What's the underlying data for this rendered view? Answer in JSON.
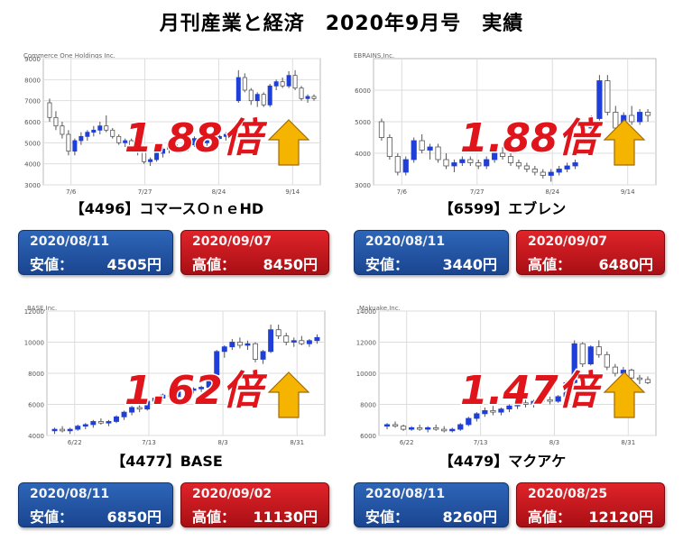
{
  "page": {
    "title": "月刊産業と経済　2020年9月号　実績"
  },
  "charts": [
    {
      "company": "【4496】コマースＯｎｅHD",
      "low": {
        "date": "2020/08/11",
        "label": "安値：",
        "value": "4505円"
      },
      "high": {
        "date": "2020/09/07",
        "label": "高値：",
        "value": "8450円"
      },
      "multiplier": "1.88倍"
    },
    {
      "company": "【6599】エブレン",
      "low": {
        "date": "2020/08/11",
        "label": "安値：",
        "value": "3440円"
      },
      "high": {
        "date": "2020/09/07",
        "label": "高値：",
        "value": "6480円"
      },
      "multiplier": "1.88倍"
    },
    {
      "company": "【4477】BASE",
      "low": {
        "date": "2020/08/11",
        "label": "安値：",
        "value": "6850円"
      },
      "high": {
        "date": "2020/09/02",
        "label": "高値：",
        "value": "11130円"
      },
      "multiplier": "1.62倍"
    },
    {
      "company": "【4479】マクアケ",
      "low": {
        "date": "2020/08/11",
        "label": "安値：",
        "value": "8260円"
      },
      "high": {
        "date": "2020/08/25",
        "label": "高値：",
        "value": "12120円"
      },
      "multiplier": "1.47倍"
    }
  ],
  "colors": {
    "up": "#1f3fd8",
    "down": "#ffffff",
    "outline": "#555555",
    "multiplier": "#e0141b",
    "arrow": "#f5b400"
  },
  "chart_data": [
    {
      "type": "candlestick",
      "title": "Commerce One Holdings Inc.",
      "ylim": [
        3000,
        9000
      ],
      "yticks": [
        3000,
        4000,
        5000,
        6000,
        7000,
        8000,
        9000
      ],
      "xticks": [
        "7/6",
        "7/27",
        "8/24",
        "9/14"
      ],
      "grid": true,
      "values": [
        [
          6900,
          7100,
          6000,
          6200
        ],
        [
          6200,
          6500,
          5600,
          5800
        ],
        [
          5800,
          6000,
          5200,
          5400
        ],
        [
          5400,
          5600,
          4400,
          4600
        ],
        [
          4600,
          5200,
          4400,
          5100
        ],
        [
          5100,
          5500,
          4900,
          5300
        ],
        [
          5300,
          5600,
          5100,
          5500
        ],
        [
          5500,
          5800,
          5300,
          5600
        ],
        [
          5600,
          6000,
          5400,
          5800
        ],
        [
          5800,
          6300,
          5500,
          5600
        ],
        [
          5600,
          5700,
          5200,
          5300
        ],
        [
          5300,
          5400,
          4900,
          5000
        ],
        [
          5000,
          5200,
          4800,
          5100
        ],
        [
          5100,
          5200,
          4600,
          4700
        ],
        [
          4700,
          4900,
          4400,
          4600
        ],
        [
          4600,
          4700,
          4000,
          4100
        ],
        [
          4100,
          4300,
          3900,
          4200
        ],
        [
          4200,
          4600,
          4100,
          4500
        ],
        [
          4500,
          4800,
          4300,
          4700
        ],
        [
          4700,
          5000,
          4500,
          4900
        ],
        [
          4900,
          5100,
          4600,
          4700
        ],
        [
          4700,
          4900,
          4500,
          4800
        ],
        [
          4800,
          5000,
          4600,
          4900
        ],
        [
          4900,
          5300,
          4800,
          5200
        ],
        [
          5200,
          5400,
          4900,
          5000
        ],
        [
          5000,
          5200,
          4800,
          5100
        ],
        [
          5100,
          5300,
          4900,
          5200
        ],
        [
          5200,
          5400,
          5000,
          5300
        ],
        [
          5300,
          5500,
          5100,
          5400
        ],
        [
          5400,
          5600,
          5200,
          5500
        ],
        [
          7000,
          8450,
          6900,
          8100
        ],
        [
          8100,
          8300,
          7400,
          7500
        ],
        [
          7500,
          7600,
          6800,
          7000
        ],
        [
          7000,
          7400,
          6700,
          7300
        ],
        [
          7300,
          7400,
          6700,
          6800
        ],
        [
          6800,
          7800,
          6700,
          7700
        ],
        [
          7700,
          8000,
          7500,
          7900
        ],
        [
          7900,
          8100,
          7600,
          7700
        ],
        [
          7700,
          8400,
          7600,
          8200
        ],
        [
          8200,
          8450,
          7500,
          7600
        ],
        [
          7600,
          7700,
          7000,
          7100
        ],
        [
          7100,
          7300,
          6900,
          7200
        ],
        [
          7200,
          7300,
          7000,
          7100
        ]
      ]
    },
    {
      "type": "candlestick",
      "title": "EBRAINS,Inc.",
      "ylim": [
        3000,
        7000
      ],
      "yticks": [
        3000,
        4000,
        5000,
        6000
      ],
      "xticks": [
        "7/6",
        "7/27",
        "8/24",
        "9/14"
      ],
      "grid": true,
      "values": [
        [
          5000,
          5100,
          4400,
          4500
        ],
        [
          4500,
          4600,
          3800,
          3900
        ],
        [
          3900,
          4000,
          3300,
          3400
        ],
        [
          3400,
          3900,
          3300,
          3800
        ],
        [
          3800,
          4500,
          3700,
          4400
        ],
        [
          4400,
          4600,
          4000,
          4100
        ],
        [
          4100,
          4300,
          3800,
          4200
        ],
        [
          4200,
          4300,
          3700,
          3800
        ],
        [
          3800,
          4000,
          3500,
          3600
        ],
        [
          3600,
          3800,
          3400,
          3700
        ],
        [
          3700,
          3900,
          3600,
          3800
        ],
        [
          3800,
          3900,
          3600,
          3700
        ],
        [
          3700,
          3800,
          3500,
          3600
        ],
        [
          3600,
          3900,
          3500,
          3800
        ],
        [
          3800,
          4100,
          3700,
          4000
        ],
        [
          4000,
          4200,
          3800,
          3900
        ],
        [
          3900,
          4000,
          3600,
          3700
        ],
        [
          3700,
          3800,
          3500,
          3600
        ],
        [
          3600,
          3700,
          3400,
          3500
        ],
        [
          3500,
          3600,
          3300,
          3400
        ],
        [
          3400,
          3500,
          3200,
          3300
        ],
        [
          3300,
          3500,
          3100,
          3400
        ],
        [
          3400,
          3600,
          3300,
          3500
        ],
        [
          3500,
          3700,
          3400,
          3600
        ],
        [
          3600,
          3800,
          3500,
          3700
        ],
        [
          4500,
          4900,
          4400,
          4800
        ],
        [
          4800,
          5200,
          4700,
          5100
        ],
        [
          5100,
          6480,
          5000,
          6300
        ],
        [
          6300,
          6480,
          5200,
          5300
        ],
        [
          5300,
          5500,
          4700,
          4800
        ],
        [
          4800,
          5300,
          4600,
          5200
        ],
        [
          5200,
          5500,
          4900,
          5000
        ],
        [
          5000,
          5400,
          4900,
          5300
        ],
        [
          5300,
          5400,
          5000,
          5200
        ]
      ]
    },
    {
      "type": "candlestick",
      "title": "BASE,Inc.",
      "ylim": [
        4000,
        12000
      ],
      "yticks": [
        4000,
        6000,
        8000,
        10000,
        12000
      ],
      "xticks": [
        "6/22",
        "7/13",
        "8/3",
        "8/31"
      ],
      "grid": true,
      "values": [
        [
          4300,
          4500,
          4100,
          4400
        ],
        [
          4400,
          4600,
          4200,
          4300
        ],
        [
          4300,
          4500,
          4100,
          4400
        ],
        [
          4400,
          4700,
          4300,
          4600
        ],
        [
          4600,
          4800,
          4400,
          4700
        ],
        [
          4700,
          5000,
          4500,
          4900
        ],
        [
          4900,
          5100,
          4700,
          4800
        ],
        [
          4800,
          5000,
          4600,
          4900
        ],
        [
          4900,
          5300,
          4800,
          5200
        ],
        [
          5200,
          5600,
          5000,
          5500
        ],
        [
          5500,
          5900,
          5300,
          5800
        ],
        [
          5800,
          6000,
          5500,
          5700
        ],
        [
          5700,
          6300,
          5600,
          6200
        ],
        [
          6200,
          6500,
          6000,
          6400
        ],
        [
          6400,
          6700,
          6200,
          6600
        ],
        [
          6600,
          6800,
          6400,
          6500
        ],
        [
          6500,
          6900,
          6400,
          6800
        ],
        [
          6800,
          7000,
          6600,
          6900
        ],
        [
          6900,
          7100,
          6700,
          7000
        ],
        [
          7000,
          7200,
          6800,
          7100
        ],
        [
          7100,
          8000,
          7000,
          7900
        ],
        [
          7900,
          9500,
          7800,
          9400
        ],
        [
          9400,
          9800,
          9000,
          9700
        ],
        [
          9700,
          10200,
          9500,
          10000
        ],
        [
          10000,
          10300,
          9600,
          9800
        ],
        [
          9800,
          10100,
          9500,
          9900
        ],
        [
          9900,
          10000,
          8700,
          8900
        ],
        [
          8900,
          9500,
          8600,
          9400
        ],
        [
          9400,
          11130,
          9300,
          10800
        ],
        [
          10800,
          11130,
          10200,
          10400
        ],
        [
          10400,
          10600,
          9800,
          10000
        ],
        [
          10000,
          10300,
          9700,
          10100
        ],
        [
          10100,
          10400,
          9800,
          9900
        ],
        [
          9900,
          10200,
          9700,
          10100
        ],
        [
          10100,
          10500,
          9900,
          10300
        ]
      ]
    },
    {
      "type": "candlestick",
      "title": "Makuake,Inc.",
      "ylim": [
        6000,
        14000
      ],
      "yticks": [
        6000,
        8000,
        10000,
        12000,
        14000
      ],
      "xticks": [
        "6/22",
        "7/13",
        "8/3",
        "8/31"
      ],
      "grid": true,
      "values": [
        [
          6600,
          6800,
          6400,
          6700
        ],
        [
          6700,
          6900,
          6500,
          6600
        ],
        [
          6600,
          6700,
          6300,
          6400
        ],
        [
          6400,
          6600,
          6300,
          6500
        ],
        [
          6500,
          6700,
          6300,
          6400
        ],
        [
          6400,
          6600,
          6200,
          6500
        ],
        [
          6500,
          6700,
          6300,
          6400
        ],
        [
          6400,
          6600,
          6200,
          6300
        ],
        [
          6300,
          6500,
          6200,
          6400
        ],
        [
          6400,
          6800,
          6300,
          6700
        ],
        [
          6700,
          7200,
          6600,
          7100
        ],
        [
          7100,
          7500,
          6900,
          7400
        ],
        [
          7400,
          7800,
          7200,
          7600
        ],
        [
          7600,
          7900,
          7300,
          7500
        ],
        [
          7500,
          7800,
          7300,
          7700
        ],
        [
          7700,
          8000,
          7500,
          7900
        ],
        [
          7900,
          8200,
          7700,
          8100
        ],
        [
          8100,
          8300,
          7800,
          8000
        ],
        [
          8000,
          8300,
          7800,
          8200
        ],
        [
          8200,
          8500,
          8000,
          8300
        ],
        [
          8300,
          8500,
          8000,
          8200
        ],
        [
          8200,
          8600,
          8100,
          8500
        ],
        [
          8500,
          9500,
          8400,
          9400
        ],
        [
          9400,
          12120,
          9300,
          11900
        ],
        [
          11900,
          12000,
          10400,
          10600
        ],
        [
          10600,
          11800,
          10500,
          11700
        ],
        [
          11700,
          12120,
          11000,
          11200
        ],
        [
          11200,
          11400,
          10200,
          10400
        ],
        [
          10400,
          10600,
          9800,
          10000
        ],
        [
          10000,
          10400,
          9700,
          10200
        ],
        [
          10200,
          10300,
          9600,
          9700
        ],
        [
          9700,
          9900,
          9300,
          9600
        ],
        [
          9600,
          9800,
          9300,
          9400
        ]
      ]
    }
  ]
}
